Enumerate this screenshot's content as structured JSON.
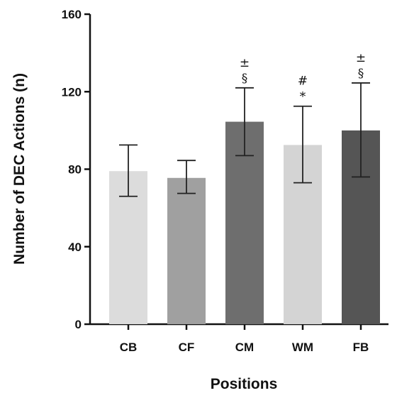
{
  "chart_data": {
    "type": "bar",
    "title": "",
    "xlabel": "Positions",
    "ylabel": "Number of DEC Actions (n)",
    "ylim": [
      0,
      160
    ],
    "yticks": [
      "0",
      "40",
      "80",
      "120",
      "160"
    ],
    "grid": false,
    "categories": [
      "CB",
      "CF",
      "CM",
      "WM",
      "FB"
    ],
    "values": [
      79,
      75.5,
      104.5,
      92.5,
      100
    ],
    "error_low": [
      66,
      67.5,
      87,
      73,
      76
    ],
    "error_high": [
      92.5,
      84.5,
      122,
      112.5,
      124.5
    ],
    "bar_colors": [
      "#dcdcdc",
      "#a0a0a0",
      "#6e6e6e",
      "#d4d4d4",
      "#555555"
    ],
    "annotations": [
      [],
      [],
      [
        "±",
        "§"
      ],
      [
        "#",
        "*"
      ],
      [
        "±",
        "§"
      ]
    ]
  }
}
